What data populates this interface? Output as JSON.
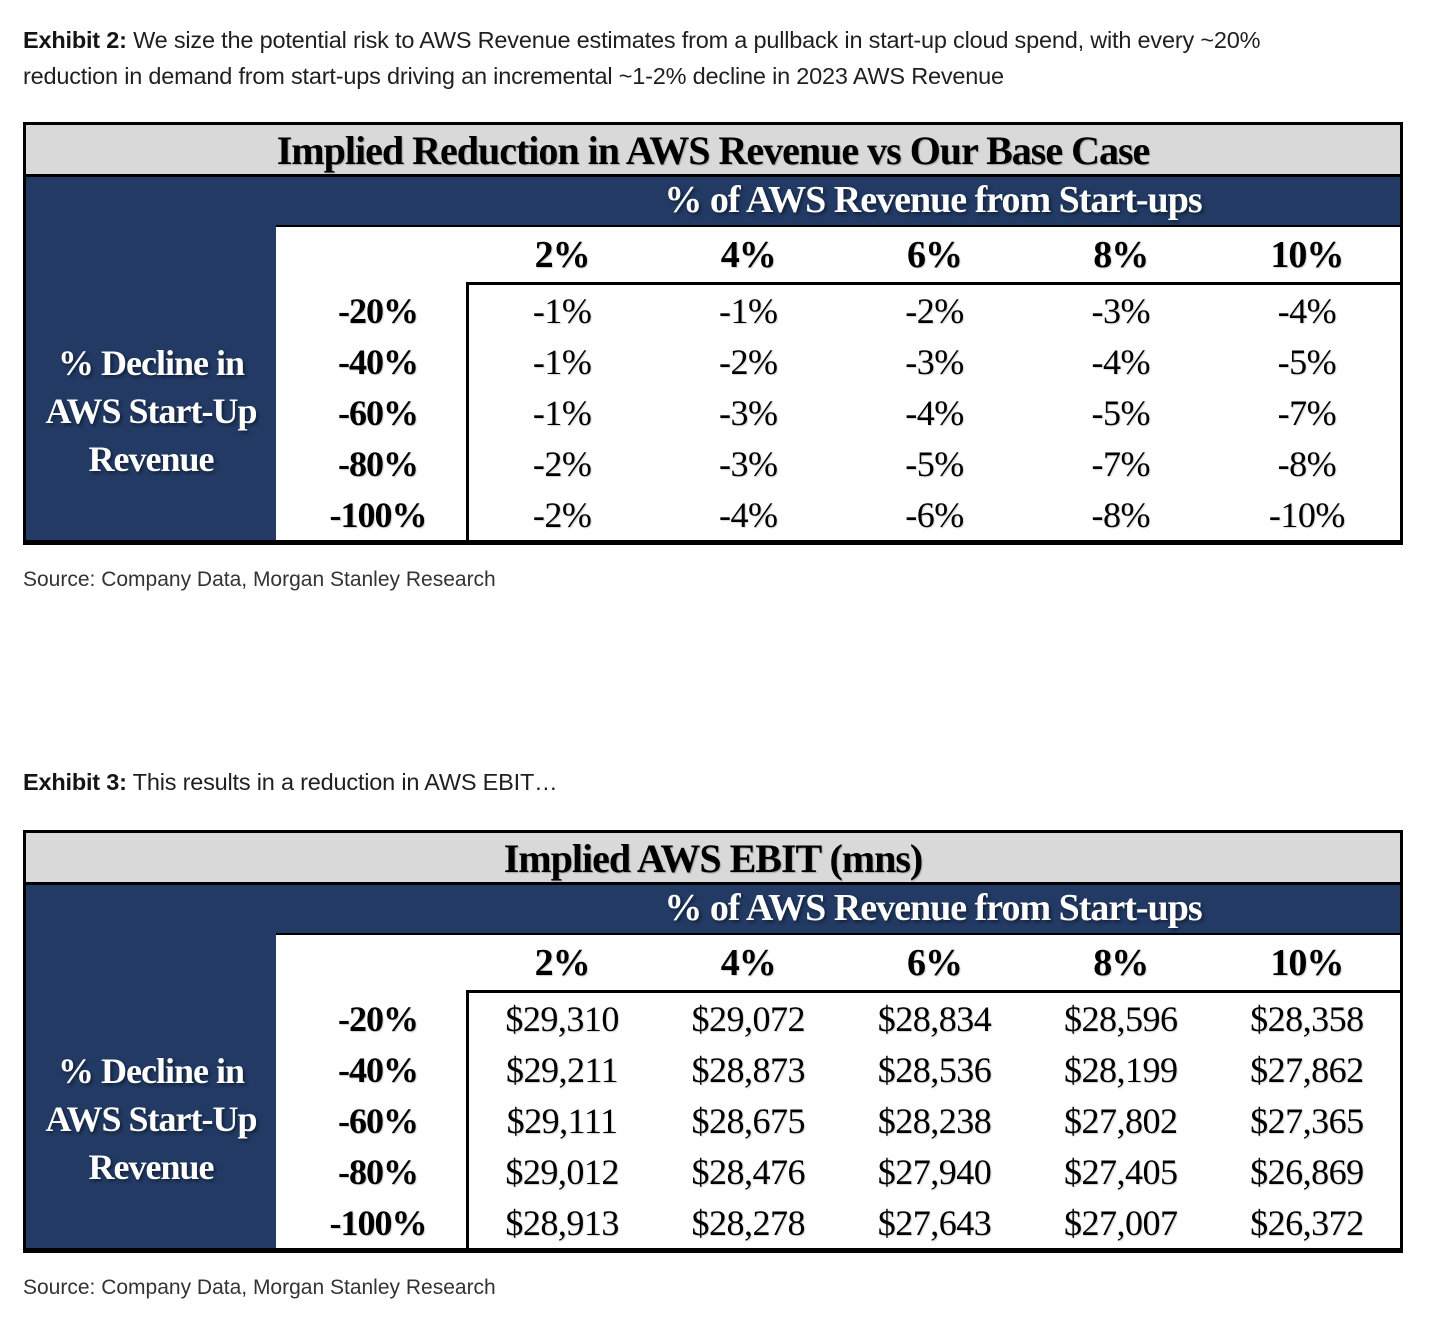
{
  "colors": {
    "navy": "#223A64",
    "title_bg": "#D9D9D9",
    "border": "#000000",
    "caption_text": "#1F1F1F",
    "source_text": "#333333"
  },
  "exhibit2": {
    "caption_prefix": "Exhibit 2:",
    "caption_line1": "We size the potential risk to AWS Revenue estimates from a pullback in start-up cloud spend, with every ~20%",
    "caption_line2": "reduction in demand from start-ups driving an incremental ~1-2% decline in 2023 AWS Revenue",
    "table": {
      "title": "Implied Reduction in AWS Revenue vs Our Base Case",
      "column_group_header": "% of AWS Revenue from Start-ups",
      "col_headers": [
        "2%",
        "4%",
        "6%",
        "8%",
        "10%"
      ],
      "side_label_lines": [
        "% Decline in",
        "AWS Start-Up",
        "Revenue"
      ],
      "row_headers": [
        "-20%",
        "-40%",
        "-60%",
        "-80%",
        "-100%"
      ],
      "rows": [
        [
          "-1%",
          "-1%",
          "-2%",
          "-3%",
          "-4%"
        ],
        [
          "-1%",
          "-2%",
          "-3%",
          "-4%",
          "-5%"
        ],
        [
          "-1%",
          "-3%",
          "-4%",
          "-5%",
          "-7%"
        ],
        [
          "-2%",
          "-3%",
          "-5%",
          "-7%",
          "-8%"
        ],
        [
          "-2%",
          "-4%",
          "-6%",
          "-8%",
          "-10%"
        ]
      ]
    },
    "source": "Source: Company Data, Morgan Stanley Research"
  },
  "exhibit3": {
    "caption_prefix": "Exhibit 3:",
    "caption_line1": "This results in a reduction in AWS EBIT…",
    "table": {
      "title": "Implied AWS EBIT (mns)",
      "column_group_header": "% of AWS Revenue from Start-ups",
      "col_headers": [
        "2%",
        "4%",
        "6%",
        "8%",
        "10%"
      ],
      "side_label_lines": [
        "% Decline in",
        "AWS Start-Up",
        "Revenue"
      ],
      "row_headers": [
        "-20%",
        "-40%",
        "-60%",
        "-80%",
        "-100%"
      ],
      "rows": [
        [
          "$29,310",
          "$29,072",
          "$28,834",
          "$28,596",
          "$28,358"
        ],
        [
          "$29,211",
          "$28,873",
          "$28,536",
          "$28,199",
          "$27,862"
        ],
        [
          "$29,111",
          "$28,675",
          "$28,238",
          "$27,802",
          "$27,365"
        ],
        [
          "$29,012",
          "$28,476",
          "$27,940",
          "$27,405",
          "$26,869"
        ],
        [
          "$28,913",
          "$28,278",
          "$27,643",
          "$27,007",
          "$26,372"
        ]
      ]
    },
    "source": "Source: Company Data, Morgan Stanley Research"
  }
}
